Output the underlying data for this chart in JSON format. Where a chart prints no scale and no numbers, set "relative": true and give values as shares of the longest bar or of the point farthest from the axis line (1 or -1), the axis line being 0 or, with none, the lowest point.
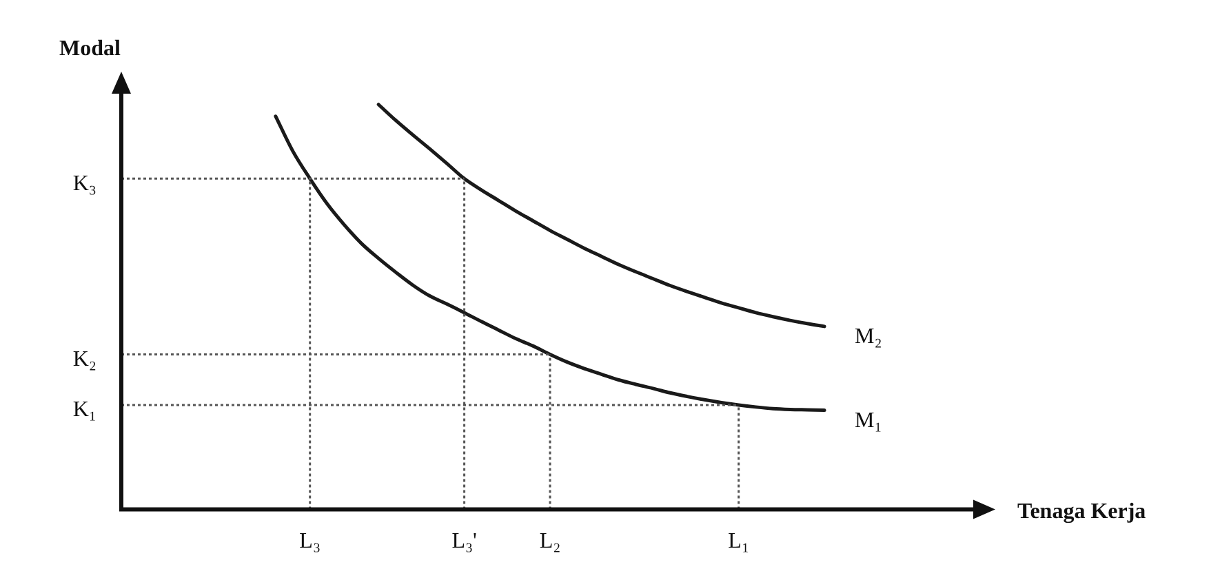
{
  "chart_data": {
    "type": "line",
    "xlabel": "Tenaga Kerja",
    "ylabel": "Modal",
    "relative": true,
    "grid": false,
    "legend": false,
    "marker": "none",
    "categories": [
      null,
      null,
      null,
      null,
      null,
      null,
      null,
      null,
      null,
      null,
      null,
      "L₃",
      null,
      null,
      null,
      null,
      null,
      null,
      null,
      null,
      "L₃'",
      null,
      null,
      null,
      null,
      "L₂",
      null,
      null,
      null,
      null,
      null,
      null,
      null,
      null,
      null,
      null,
      "L₁",
      null,
      null,
      null,
      null,
      null,
      null,
      null,
      null,
      null,
      null,
      null,
      null,
      null,
      null
    ],
    "series": [
      {
        "name": "M₁",
        "color": "#1a1a1a",
        "line_style": "solid",
        "values": [
          null,
          null,
          null,
          null,
          null,
          null,
          null,
          null,
          null,
          0.971,
          0.885,
          0.817,
          0.755,
          0.703,
          0.657,
          0.62,
          0.586,
          0.554,
          0.527,
          0.507,
          0.486,
          0.464,
          0.443,
          0.422,
          0.404,
          0.383,
          0.364,
          0.348,
          0.334,
          0.32,
          0.309,
          0.299,
          0.288,
          0.279,
          0.271,
          0.264,
          0.258,
          0.253,
          0.249,
          0.247,
          0.246,
          0.245,
          null,
          null,
          null,
          null,
          null,
          null,
          null,
          null,
          null
        ]
      },
      {
        "name": "M₂",
        "color": "#1a1a1a",
        "line_style": "solid",
        "values": [
          null,
          null,
          null,
          null,
          null,
          null,
          null,
          null,
          null,
          null,
          null,
          null,
          null,
          null,
          null,
          1,
          0.961,
          0.925,
          0.89,
          0.854,
          0.817,
          0.789,
          0.763,
          0.737,
          0.713,
          0.689,
          0.667,
          0.645,
          0.625,
          0.605,
          0.587,
          0.57,
          0.553,
          0.538,
          0.524,
          0.51,
          0.498,
          0.486,
          0.476,
          0.467,
          0.459,
          0.452,
          null,
          null,
          null,
          null,
          null,
          null,
          null,
          null,
          null
        ]
      }
    ],
    "ref_lines": [
      {
        "axis": "y",
        "value": 0.817,
        "label": "K₃",
        "color": "#555555",
        "line_style": "dotted"
      },
      {
        "axis": "y",
        "value": 0.383,
        "label": "K₂",
        "color": "#555555",
        "line_style": "dotted"
      },
      {
        "axis": "y",
        "value": 0.258,
        "label": "K₁",
        "color": "#555555",
        "line_style": "dotted"
      },
      {
        "axis": "x",
        "value": "L₃",
        "color": "#555555",
        "line_style": "dotted"
      },
      {
        "axis": "x",
        "value": "L₃'",
        "color": "#555555",
        "line_style": "dotted"
      },
      {
        "axis": "x",
        "value": "L₂",
        "color": "#555555",
        "line_style": "dotted"
      },
      {
        "axis": "x",
        "value": "L₁",
        "color": "#555555",
        "line_style": "dotted"
      }
    ]
  }
}
